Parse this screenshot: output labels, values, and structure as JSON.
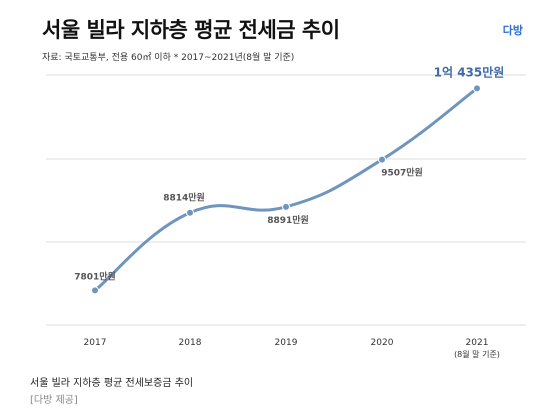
{
  "header": {
    "title": "서울 빌라 지하층 평균 전세금 추이",
    "logo": "다방",
    "source": "자료: 국토교통부, 전용 60㎡ 이하   * 2017~2021년(8월 말 기준)"
  },
  "footer": {
    "caption": "서울 빌라 지하층 평균 전세보증금 추이",
    "credit": "[다방 제공]"
  },
  "colors": {
    "line": "#6f94bd",
    "highlight": "#3f6aa8",
    "label": "#555555",
    "grid": "#dcdcdc"
  },
  "chart_data": {
    "type": "line",
    "categories": [
      "2017",
      "2018",
      "2019",
      "2020",
      "2021"
    ],
    "category_sublabels": [
      "",
      "",
      "",
      "",
      "(8월 말 기준)"
    ],
    "values": [
      7801,
      8814,
      8891,
      9507,
      10435
    ],
    "data_labels": [
      "7801만원",
      "8814만원",
      "8891만원",
      "9507만원",
      "1억 435만원"
    ],
    "highlight_index": 4,
    "units": "만원",
    "ylim": [
      7350,
      10610
    ],
    "grid": true,
    "legend": "none"
  }
}
